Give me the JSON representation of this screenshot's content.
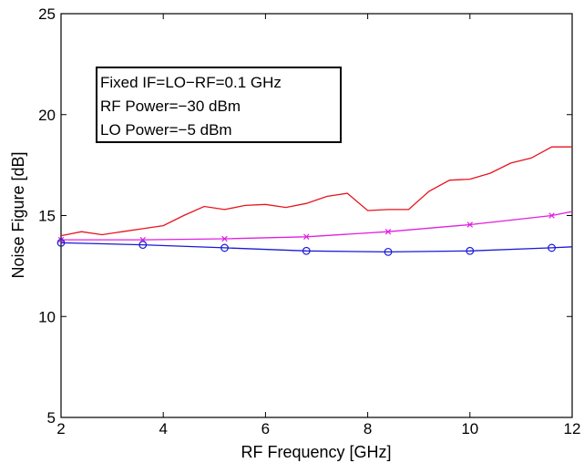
{
  "chart_data": {
    "type": "line",
    "title": "",
    "xlabel": "RF Frequency [GHz]",
    "ylabel": "Noise Figure [dB]",
    "xlim": [
      2,
      12
    ],
    "ylim": [
      5,
      25
    ],
    "xticks": [
      "2",
      "4",
      "6",
      "8",
      "10",
      "12"
    ],
    "yticks": [
      "5",
      "10",
      "15",
      "20",
      "25"
    ],
    "grid": false,
    "annotation": {
      "lines": [
        "Fixed IF=LO−RF=0.1 GHz",
        "RF Power=−30 dBm",
        "LO Power=−5 dBm"
      ]
    },
    "series": [
      {
        "color": "#e8141e",
        "marker": "none",
        "x": [
          2,
          2.4,
          2.8,
          3.2,
          3.6,
          4,
          4.4,
          4.8,
          5.2,
          5.6,
          6,
          6.4,
          6.8,
          7.2,
          7.6,
          8,
          8.4,
          8.8,
          9.2,
          9.6,
          10,
          10.4,
          10.8,
          11.2,
          11.6,
          12
        ],
        "y": [
          14.0,
          14.2,
          14.05,
          14.2,
          14.35,
          14.5,
          15.0,
          15.45,
          15.3,
          15.5,
          15.55,
          15.4,
          15.6,
          15.95,
          16.1,
          15.25,
          15.3,
          15.3,
          16.2,
          16.75,
          16.8,
          17.1,
          17.6,
          17.85,
          18.4,
          18.4
        ]
      },
      {
        "color": "#e020e0",
        "marker": "x",
        "x": [
          2,
          3.6,
          5.2,
          6.8,
          8.4,
          10,
          11.6,
          12
        ],
        "y": [
          13.8,
          13.8,
          13.85,
          13.95,
          14.2,
          14.55,
          15.0,
          15.2
        ],
        "marker_x": [
          2,
          3.6,
          5.2,
          6.8,
          8.4,
          10,
          11.6
        ]
      },
      {
        "color": "#1a1ad6",
        "marker": "o",
        "x": [
          2,
          3.6,
          5.2,
          6.8,
          8.4,
          10,
          11.6,
          12
        ],
        "y": [
          13.65,
          13.55,
          13.4,
          13.25,
          13.2,
          13.25,
          13.4,
          13.45
        ],
        "marker_x": [
          2,
          3.6,
          5.2,
          6.8,
          8.4,
          10,
          11.6
        ]
      }
    ]
  }
}
